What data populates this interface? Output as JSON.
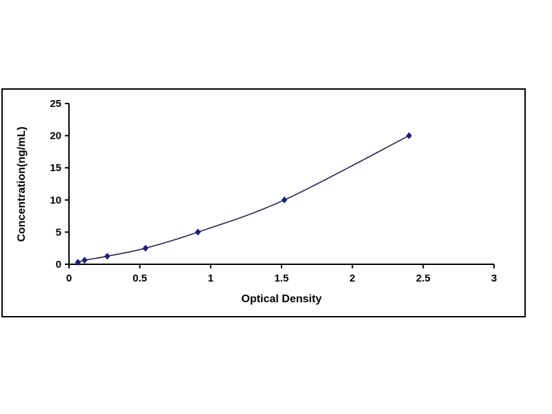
{
  "chart_data": {
    "type": "line",
    "title": "",
    "xlabel": "Optical Density",
    "ylabel": "Concentration(ng/mL)",
    "x": [
      0.063,
      0.11,
      0.27,
      0.54,
      0.91,
      1.52,
      2.4
    ],
    "y": [
      0.31,
      0.63,
      1.25,
      2.5,
      5,
      10,
      20
    ],
    "xlim": [
      0,
      3
    ],
    "ylim": [
      0,
      25
    ],
    "xticks": [
      0,
      0.5,
      1,
      1.5,
      2,
      2.5,
      3
    ],
    "yticks": [
      0,
      5,
      10,
      15,
      20,
      25
    ],
    "grid": false,
    "legend": "none",
    "marker": "diamond",
    "line_color": "#23234f",
    "marker_color": "#1c1c78",
    "frame_color": "#000000",
    "background_color": "#ffffff"
  }
}
